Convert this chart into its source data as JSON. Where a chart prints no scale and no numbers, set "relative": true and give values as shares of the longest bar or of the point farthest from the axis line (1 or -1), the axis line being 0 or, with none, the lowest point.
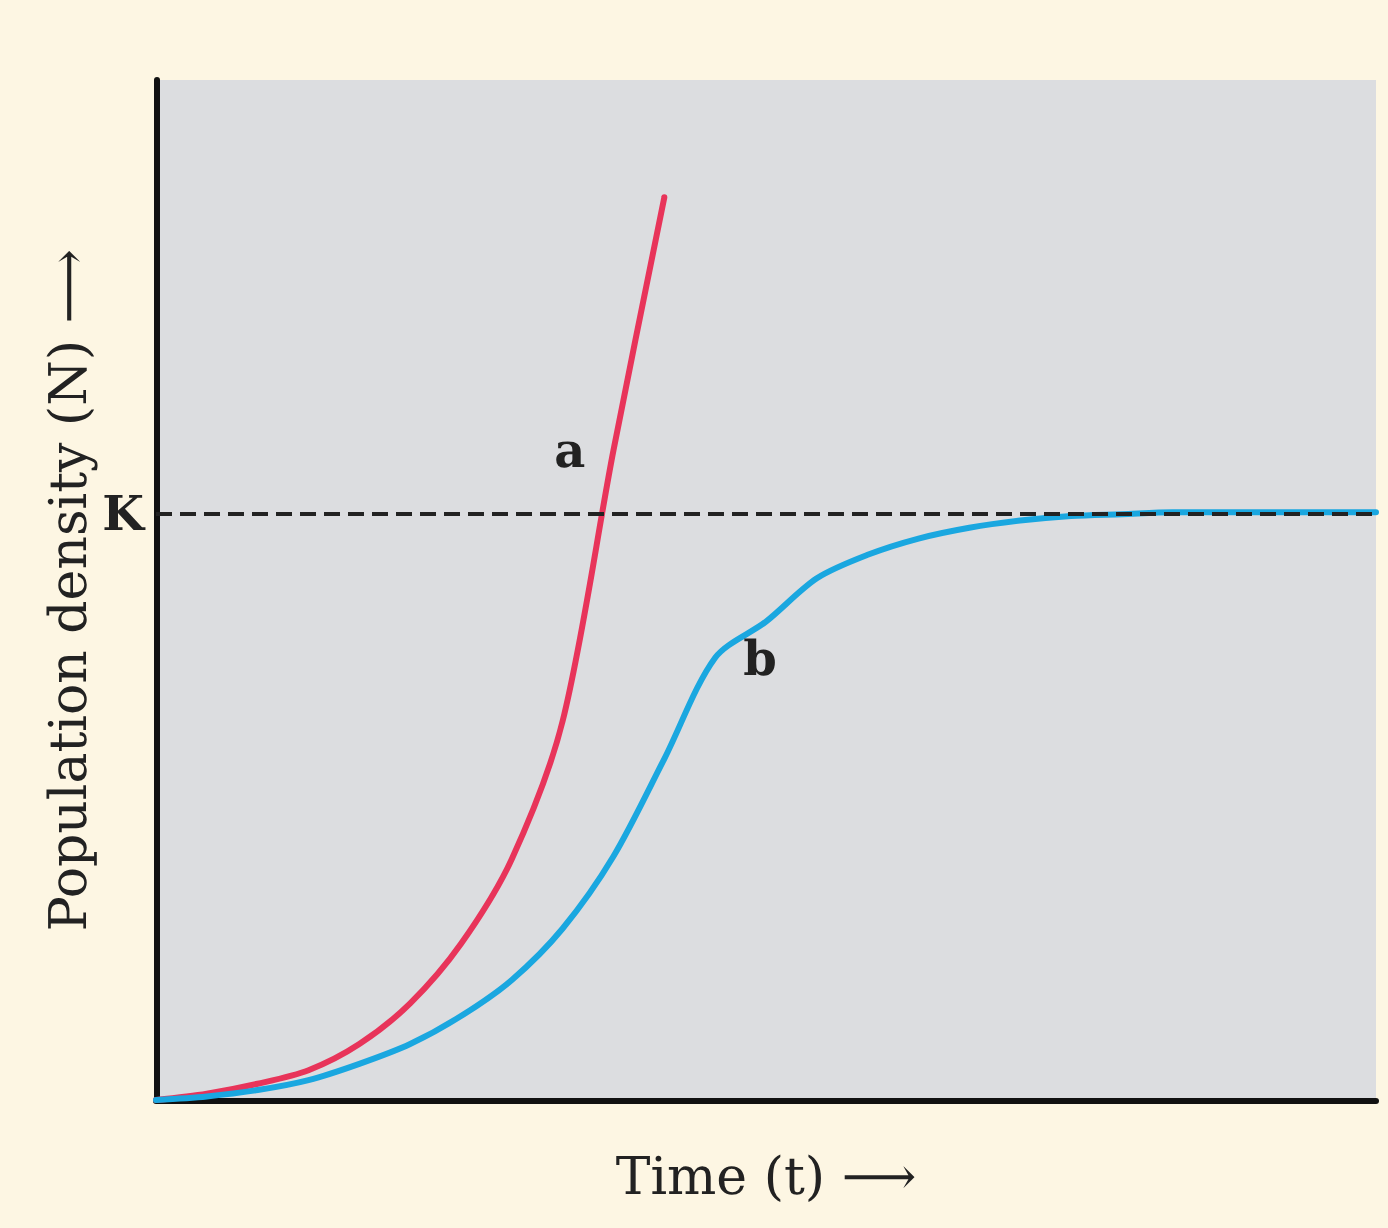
{
  "chart_data": {
    "type": "line",
    "relative": true,
    "xlabel": "Time (t) ⟶",
    "ylabel": "Population density (N) ⟶",
    "categories": [
      null,
      null,
      null,
      null,
      null,
      null,
      null,
      null,
      null,
      null,
      null,
      null,
      null,
      null,
      null,
      null,
      null,
      null,
      null,
      null,
      null,
      null,
      null,
      null,
      null
    ],
    "series": [
      {
        "name": "a",
        "color": "#e8345a",
        "values": [
          0,
          0.007,
          0.018,
          0.033,
          0.062,
          0.107,
          0.173,
          0.267,
          0.42,
          0.72,
          1,
          null,
          null,
          null,
          null,
          null,
          null,
          null,
          null,
          null,
          null,
          null,
          null,
          null,
          null
        ]
      },
      {
        "name": "b",
        "color": "#1aa7e0",
        "values": [
          0,
          0.004,
          0.011,
          0.022,
          0.04,
          0.062,
          0.093,
          0.133,
          0.19,
          0.27,
          0.378,
          0.49,
          0.53,
          0.578,
          0.604,
          0.622,
          0.634,
          0.642,
          0.647,
          0.649,
          0.651,
          0.651,
          0.651,
          0.651,
          0.651
        ]
      }
    ],
    "ref_lines": [
      {
        "axis": "y",
        "value": 0.651,
        "label": "K",
        "color": "#222222",
        "line_style": "dashed"
      }
    ],
    "grid": false,
    "legend": false,
    "marker": "none",
    "line_style": "solid"
  }
}
